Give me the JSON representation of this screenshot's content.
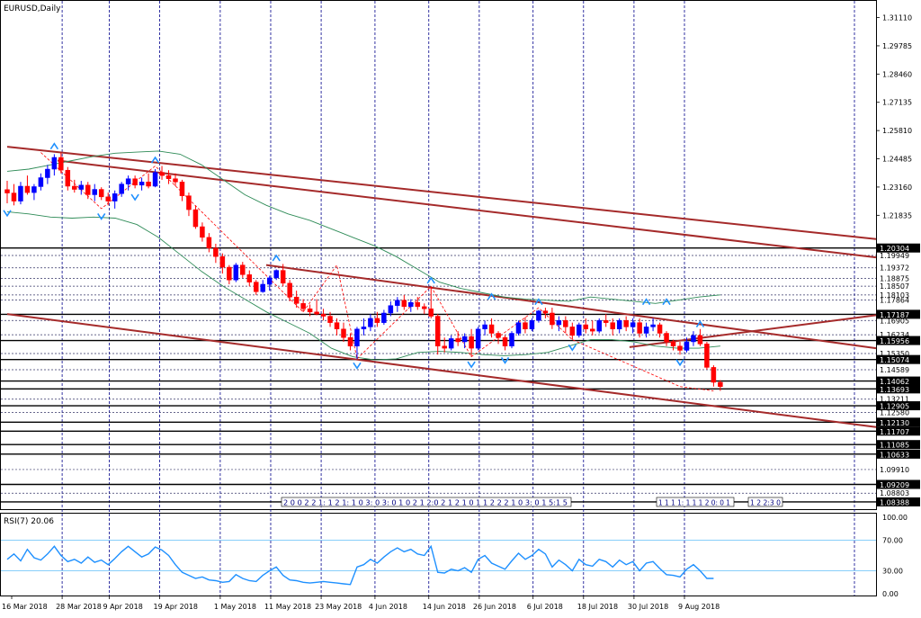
{
  "window": {
    "title": "EURUSD,Daily"
  },
  "indicator": {
    "label": "RSI(7) 20.06"
  },
  "colors": {
    "bull": "#0000ff",
    "bear": "#ff0000",
    "trendline": "#a52a2a",
    "bollinger": "#2e8b57",
    "hline": "#000000",
    "vgrid": "#00008b",
    "fractal": "#1e90ff",
    "zigzag": "#ff0000",
    "rsi_line": "#1e90ff",
    "rsi_level": "#87cefa"
  },
  "chart_data": [
    {
      "type": "candlestick",
      "title": "EURUSD,Daily",
      "ylim": [
        1.0805,
        1.3185
      ],
      "price_ticks": [
        "1.31110",
        "1.29785",
        "1.28460",
        "1.27135",
        "1.25810",
        "1.24485",
        "1.23160",
        "1.21835"
      ],
      "price_level_labels": [
        "1.20304",
        "1.19949",
        "1.19372",
        "1.18875",
        "1.18507",
        "1.18103",
        "1.17864",
        "1.17187",
        "1.16905",
        "1.16234",
        "1.15956",
        "1.15350",
        "1.15074",
        "1.14589",
        "1.14062",
        "1.13693",
        "1.13211",
        "1.12905",
        "1.12580",
        "1.12130",
        "1.11707",
        "1.11085",
        "1.10633",
        "1.09910",
        "1.09209",
        "1.08803",
        "1.08388"
      ],
      "highlighted_levels": [
        "1.20304",
        "1.17187",
        "1.15956",
        "1.15074",
        "1.14062",
        "1.13693",
        "1.12905",
        "1.12130",
        "1.11707",
        "1.11085",
        "1.10633",
        "1.09209",
        "1.08388"
      ],
      "date_labels": [
        "16 Mar 2018",
        "28 Mar 2018",
        "9 Apr 2018",
        "19 Apr 2018",
        "1 May 2018",
        "11 May 2018",
        "23 May 2018",
        "4 Jun 2018",
        "14 Jun 2018",
        "26 Jun 2018",
        "6 Jul 2018",
        "18 Jul 2018",
        "30 Jul 2018",
        "9 Aug 2018"
      ],
      "horizontal_lines": [
        1.203,
        1.1995,
        1.1937,
        1.1888,
        1.1851,
        1.181,
        1.1786,
        1.1719,
        1.169,
        1.1623,
        1.1596,
        1.1535,
        1.1507,
        1.1459,
        1.1406,
        1.1369,
        1.1321,
        1.129,
        1.1258,
        1.1213,
        1.1171,
        1.1108,
        1.1063,
        1.0991,
        1.0921,
        1.088,
        1.0839
      ],
      "trendlines": [
        {
          "from": [
            "16 Mar 2018",
            1.2505
          ],
          "to": [
            "right-edge",
            1.2072
          ]
        },
        {
          "from": [
            "28 Mar 2018",
            1.244
          ],
          "to": [
            "right-edge",
            1.1986
          ]
        },
        {
          "from": [
            "11 May 2018",
            1.195
          ],
          "to": [
            "right-edge",
            1.156
          ]
        },
        {
          "from": [
            "16 Mar 2018",
            1.172
          ],
          "to": [
            "right-edge",
            1.119
          ]
        },
        {
          "from": [
            "30 Jul 2018",
            1.1565
          ],
          "to": [
            "right-edge",
            1.1715
          ]
        }
      ],
      "series": [
        {
          "name": "EURUSD",
          "ohlc": [
            [
              1.2304,
              1.2345,
              1.224,
              1.2288
            ],
            [
              1.2288,
              1.233,
              1.223,
              1.225
            ],
            [
              1.225,
              1.234,
              1.2235,
              1.232
            ],
            [
              1.232,
              1.237,
              1.228,
              1.229
            ],
            [
              1.229,
              1.233,
              1.2255,
              1.2318
            ],
            [
              1.2318,
              1.238,
              1.23,
              1.236
            ],
            [
              1.236,
              1.242,
              1.233,
              1.24
            ],
            [
              1.24,
              1.247,
              1.237,
              1.2455
            ],
            [
              1.2455,
              1.2478,
              1.238,
              1.2395
            ],
            [
              1.2395,
              1.241,
              1.23,
              1.232
            ],
            [
              1.232,
              1.235,
              1.229,
              1.2305
            ],
            [
              1.2305,
              1.2345,
              1.228,
              1.2325
            ],
            [
              1.2325,
              1.234,
              1.226,
              1.228
            ],
            [
              1.228,
              1.233,
              1.225,
              1.2305
            ],
            [
              1.2305,
              1.2315,
              1.2255,
              1.227
            ],
            [
              1.227,
              1.229,
              1.223,
              1.225
            ],
            [
              1.225,
              1.23,
              1.2215,
              1.2285
            ],
            [
              1.2285,
              1.234,
              1.227,
              1.233
            ],
            [
              1.233,
              1.237,
              1.23,
              1.2355
            ],
            [
              1.2355,
              1.237,
              1.231,
              1.2325
            ],
            [
              1.2325,
              1.236,
              1.23,
              1.234
            ],
            [
              1.234,
              1.238,
              1.231,
              1.232
            ],
            [
              1.232,
              1.24,
              1.2315,
              1.2385
            ],
            [
              1.2385,
              1.2415,
              1.235,
              1.237
            ],
            [
              1.237,
              1.2395,
              1.233,
              1.2355
            ],
            [
              1.2355,
              1.238,
              1.232,
              1.234
            ],
            [
              1.234,
              1.235,
              1.225,
              1.2275
            ],
            [
              1.2275,
              1.229,
              1.218,
              1.221
            ],
            [
              1.221,
              1.223,
              1.212,
              1.213
            ],
            [
              1.213,
              1.215,
              1.206,
              1.208
            ],
            [
              1.208,
              1.21,
              1.201,
              1.203
            ],
            [
              1.203,
              1.205,
              1.196,
              1.199
            ],
            [
              1.199,
              1.2005,
              1.191,
              1.194
            ],
            [
              1.194,
              1.195,
              1.186,
              1.188
            ],
            [
              1.188,
              1.196,
              1.187,
              1.195
            ],
            [
              1.195,
              1.1965,
              1.189,
              1.1905
            ],
            [
              1.1905,
              1.1925,
              1.185,
              1.187
            ],
            [
              1.187,
              1.188,
              1.181,
              1.1825
            ],
            [
              1.1825,
              1.188,
              1.182,
              1.186
            ],
            [
              1.186,
              1.19,
              1.183,
              1.189
            ],
            [
              1.189,
              1.193,
              1.188,
              1.1925
            ],
            [
              1.1925,
              1.1955,
              1.185,
              1.1865
            ],
            [
              1.1865,
              1.188,
              1.178,
              1.18
            ],
            [
              1.18,
              1.183,
              1.175,
              1.177
            ],
            [
              1.177,
              1.179,
              1.173,
              1.1745
            ],
            [
              1.1745,
              1.1765,
              1.171,
              1.173
            ],
            [
              1.173,
              1.179,
              1.1715,
              1.172
            ],
            [
              1.172,
              1.1745,
              1.169,
              1.171
            ],
            [
              1.171,
              1.173,
              1.166,
              1.168
            ],
            [
              1.168,
              1.17,
              1.162,
              1.165
            ],
            [
              1.165,
              1.168,
              1.159,
              1.161
            ],
            [
              1.161,
              1.163,
              1.155,
              1.157
            ],
            [
              1.157,
              1.166,
              1.151,
              1.165
            ],
            [
              1.165,
              1.17,
              1.162,
              1.166
            ],
            [
              1.166,
              1.172,
              1.164,
              1.17
            ],
            [
              1.17,
              1.173,
              1.166,
              1.168
            ],
            [
              1.168,
              1.174,
              1.167,
              1.1725
            ],
            [
              1.1725,
              1.178,
              1.171,
              1.176
            ],
            [
              1.176,
              1.18,
              1.173,
              1.1785
            ],
            [
              1.1785,
              1.181,
              1.174,
              1.1755
            ],
            [
              1.1755,
              1.179,
              1.173,
              1.1775
            ],
            [
              1.1775,
              1.18,
              1.174,
              1.1755
            ],
            [
              1.1755,
              1.177,
              1.172,
              1.1745
            ],
            [
              1.1745,
              1.185,
              1.17,
              1.171
            ],
            [
              1.171,
              1.172,
              1.153,
              1.157
            ],
            [
              1.157,
              1.161,
              1.154,
              1.156
            ],
            [
              1.156,
              1.162,
              1.155,
              1.1605
            ],
            [
              1.1605,
              1.164,
              1.157,
              1.159
            ],
            [
              1.159,
              1.163,
              1.156,
              1.1615
            ],
            [
              1.1615,
              1.165,
              1.152,
              1.156
            ],
            [
              1.156,
              1.166,
              1.155,
              1.165
            ],
            [
              1.165,
              1.169,
              1.162,
              1.167
            ],
            [
              1.167,
              1.17,
              1.161,
              1.163
            ],
            [
              1.163,
              1.164,
              1.158,
              1.161
            ],
            [
              1.161,
              1.162,
              1.155,
              1.157
            ],
            [
              1.157,
              1.164,
              1.156,
              1.163
            ],
            [
              1.163,
              1.169,
              1.162,
              1.168
            ],
            [
              1.168,
              1.1705,
              1.163,
              1.165
            ],
            [
              1.165,
              1.17,
              1.164,
              1.169
            ],
            [
              1.169,
              1.174,
              1.168,
              1.1735
            ],
            [
              1.1735,
              1.175,
              1.17,
              1.1725
            ],
            [
              1.1725,
              1.175,
              1.165,
              1.167
            ],
            [
              1.167,
              1.171,
              1.164,
              1.169
            ],
            [
              1.169,
              1.171,
              1.163,
              1.166
            ],
            [
              1.166,
              1.168,
              1.16,
              1.162
            ],
            [
              1.162,
              1.168,
              1.161,
              1.167
            ],
            [
              1.167,
              1.17,
              1.163,
              1.165
            ],
            [
              1.165,
              1.169,
              1.162,
              1.164
            ],
            [
              1.164,
              1.17,
              1.163,
              1.169
            ],
            [
              1.169,
              1.172,
              1.166,
              1.168
            ],
            [
              1.168,
              1.17,
              1.162,
              1.165
            ],
            [
              1.165,
              1.17,
              1.163,
              1.169
            ],
            [
              1.169,
              1.171,
              1.164,
              1.166
            ],
            [
              1.166,
              1.17,
              1.163,
              1.168
            ],
            [
              1.168,
              1.17,
              1.161,
              1.163
            ],
            [
              1.163,
              1.168,
              1.161,
              1.166
            ],
            [
              1.166,
              1.17,
              1.164,
              1.167
            ],
            [
              1.167,
              1.168,
              1.161,
              1.163
            ],
            [
              1.163,
              1.164,
              1.157,
              1.159
            ],
            [
              1.159,
              1.16,
              1.155,
              1.157
            ],
            [
              1.157,
              1.159,
              1.153,
              1.155
            ],
            [
              1.155,
              1.161,
              1.154,
              1.159
            ],
            [
              1.159,
              1.164,
              1.157,
              1.162
            ],
            [
              1.162,
              1.165,
              1.157,
              1.158
            ],
            [
              1.158,
              1.159,
              1.146,
              1.147
            ],
            [
              1.147,
              1.148,
              1.138,
              1.14
            ],
            [
              1.14,
              1.141,
              1.136,
              1.138
            ]
          ]
        }
      ],
      "bollinger": {
        "upper": [
          1.239,
          1.24,
          1.242,
          1.244,
          1.246,
          1.2475,
          1.248,
          1.2485,
          1.247,
          1.242,
          1.235,
          1.228,
          1.223,
          1.219,
          1.216,
          1.212,
          1.208,
          1.204,
          1.199,
          1.193,
          1.187,
          1.184,
          1.182,
          1.18,
          1.179,
          1.1785,
          1.178,
          1.18,
          1.179,
          1.178,
          1.177,
          1.1785,
          1.18,
          1.181
        ],
        "lower": [
          1.22,
          1.219,
          1.2175,
          1.217,
          1.2175,
          1.217,
          1.214,
          1.208,
          1.2,
          1.192,
          1.185,
          1.179,
          1.173,
          1.168,
          1.163,
          1.156,
          1.152,
          1.1505,
          1.151,
          1.154,
          1.1545,
          1.154,
          1.153,
          1.1525,
          1.153,
          1.154,
          1.157,
          1.16,
          1.16,
          1.159,
          1.157,
          1.156,
          1.156,
          1.157
        ]
      }
    },
    {
      "type": "line",
      "title": "RSI(7) 20.06",
      "ylim": [
        0,
        100
      ],
      "y_ticks": [
        "100.00",
        "70.00",
        "30.00",
        "0.00"
      ],
      "levels": [
        70,
        30
      ],
      "series": [
        {
          "name": "RSI(7)",
          "values": [
            45,
            52,
            43,
            58,
            47,
            44,
            52,
            62,
            50,
            42,
            45,
            40,
            48,
            41,
            44,
            38,
            46,
            55,
            62,
            55,
            48,
            52,
            61,
            57,
            50,
            38,
            28,
            24,
            20,
            22,
            18,
            17,
            15,
            16,
            25,
            20,
            17,
            16,
            24,
            30,
            35,
            24,
            18,
            17,
            15,
            14,
            15,
            16,
            15,
            14,
            13,
            12,
            35,
            38,
            45,
            40,
            48,
            55,
            60,
            55,
            58,
            52,
            50,
            62,
            28,
            27,
            32,
            30,
            34,
            28,
            45,
            50,
            40,
            36,
            32,
            43,
            53,
            45,
            50,
            58,
            52,
            35,
            44,
            38,
            30,
            45,
            38,
            36,
            45,
            42,
            35,
            44,
            38,
            42,
            30,
            40,
            42,
            33,
            25,
            24,
            22,
            32,
            38,
            30,
            20,
            20
          ]
        }
      ]
    }
  ],
  "trade_labels": {
    "group_a": "2 0 0 2 2 1: 1 2 1: 1 0 3: 0 3: 0 1 0 2 1 2:0 2 1 2 1 0 1 1 2 2 2 1 0 3: 0 1 5:1 5",
    "group_b": "1 1 1 1: 1 1 1 2 0: 0 1",
    "group_c": "1 2 2:3 0"
  }
}
